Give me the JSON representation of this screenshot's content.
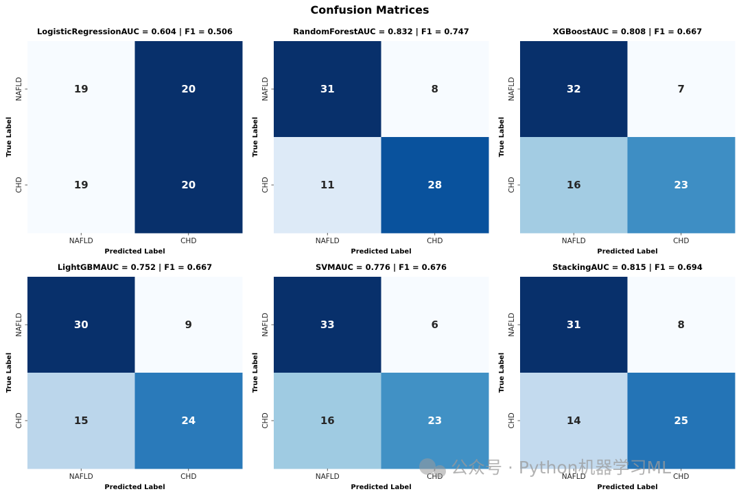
{
  "figure_title": "Confusion Matrices",
  "watermark": "公众号 · Python机器学习ML",
  "colors": {
    "cmap_low": "#f7fbff",
    "cmap_high": "#08306b",
    "text_dark": "#262626",
    "text_light": "#ffffff"
  },
  "chart_data": [
    {
      "type": "heatmap",
      "title": "LogisticRegressionAUC =  0.604 | F1 =  0.506",
      "xlabel": "Predicted Label",
      "ylabel": "True Label",
      "x_categories": [
        "NAFLD",
        "CHD"
      ],
      "y_categories": [
        "NAFLD",
        "CHD"
      ],
      "values": [
        [
          19,
          20
        ],
        [
          19,
          20
        ]
      ]
    },
    {
      "type": "heatmap",
      "title": "RandomForestAUC =  0.832 | F1 =  0.747",
      "xlabel": "Predicted Label",
      "ylabel": "True Label",
      "x_categories": [
        "NAFLD",
        "CHD"
      ],
      "y_categories": [
        "NAFLD",
        "CHD"
      ],
      "values": [
        [
          31,
          8
        ],
        [
          11,
          28
        ]
      ]
    },
    {
      "type": "heatmap",
      "title": "XGBoostAUC =  0.808 | F1 =  0.667",
      "xlabel": "Predicted Label",
      "ylabel": "True Label",
      "x_categories": [
        "NAFLD",
        "CHD"
      ],
      "y_categories": [
        "NAFLD",
        "CHD"
      ],
      "values": [
        [
          32,
          7
        ],
        [
          16,
          23
        ]
      ]
    },
    {
      "type": "heatmap",
      "title": "LightGBMAUC =  0.752 | F1 =  0.667",
      "xlabel": "Predicted Label",
      "ylabel": "True Label",
      "x_categories": [
        "NAFLD",
        "CHD"
      ],
      "y_categories": [
        "NAFLD",
        "CHD"
      ],
      "values": [
        [
          30,
          9
        ],
        [
          15,
          24
        ]
      ]
    },
    {
      "type": "heatmap",
      "title": "SVMAUC =  0.776 | F1 =  0.676",
      "xlabel": "Predicted Label",
      "ylabel": "True Label",
      "x_categories": [
        "NAFLD",
        "CHD"
      ],
      "y_categories": [
        "NAFLD",
        "CHD"
      ],
      "values": [
        [
          33,
          6
        ],
        [
          16,
          23
        ]
      ]
    },
    {
      "type": "heatmap",
      "title": "StackingAUC =  0.815 | F1 =  0.694",
      "xlabel": "Predicted Label",
      "ylabel": "True Label",
      "x_categories": [
        "NAFLD",
        "CHD"
      ],
      "y_categories": [
        "NAFLD",
        "CHD"
      ],
      "values": [
        [
          31,
          8
        ],
        [
          14,
          25
        ]
      ]
    }
  ]
}
